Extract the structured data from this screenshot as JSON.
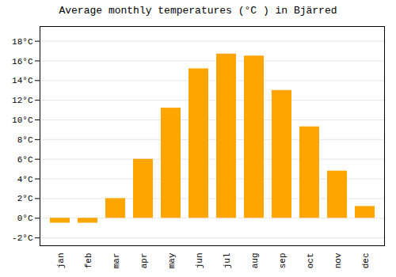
{
  "chart_data": {
    "type": "bar",
    "title": "Average monthly temperatures (°C ) in Bjärred",
    "categories": [
      "jan",
      "feb",
      "mar",
      "apr",
      "may",
      "jun",
      "jul",
      "aug",
      "sep",
      "oct",
      "nov",
      "dec"
    ],
    "values": [
      -0.5,
      -0.5,
      2.0,
      6.0,
      11.2,
      15.2,
      16.7,
      16.5,
      13.0,
      9.3,
      4.8,
      1.2
    ],
    "color": "#FFA500",
    "ylim": [
      -2.8,
      19.5
    ],
    "yticks": [
      {
        "value": -2,
        "label": "-2°C"
      },
      {
        "value": 0,
        "label": "0°C"
      },
      {
        "value": 2,
        "label": "2°C"
      },
      {
        "value": 4,
        "label": "4°C"
      },
      {
        "value": 6,
        "label": "6°C"
      },
      {
        "value": 8,
        "label": "8°C"
      },
      {
        "value": 10,
        "label": "10°C"
      },
      {
        "value": 12,
        "label": "12°C"
      },
      {
        "value": 14,
        "label": "14°C"
      },
      {
        "value": 16,
        "label": "16°C"
      },
      {
        "value": 18,
        "label": "18°C"
      }
    ],
    "grid": true
  }
}
